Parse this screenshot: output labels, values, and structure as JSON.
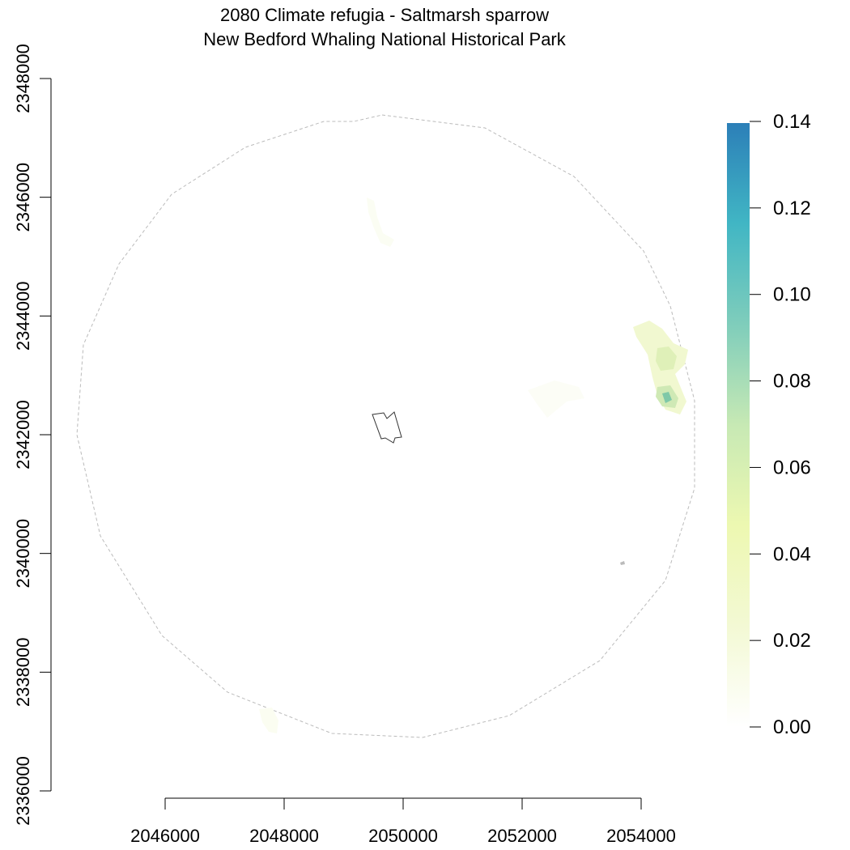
{
  "title": {
    "line1": "2080 Climate refugia - Saltmarsh sparrow",
    "line2": "New Bedford Whaling National Historical Park"
  },
  "map": {
    "x_range": [
      2044000,
      2055000
    ],
    "y_range": [
      2336000,
      2348000
    ],
    "x_ticks": [
      2046000,
      2048000,
      2050000,
      2052000,
      2054000
    ],
    "y_ticks": [
      2336000,
      2338000,
      2340000,
      2342000,
      2344000,
      2346000,
      2348000
    ],
    "x_tick_labels": [
      "2046000",
      "2048000",
      "2050000",
      "2052000",
      "2054000"
    ],
    "y_tick_labels": [
      "2336000",
      "2338000",
      "2340000",
      "2342000",
      "2344000",
      "2346000",
      "2348000"
    ],
    "buffer_boundary_color": "#bbbbbb",
    "park_boundary_color": "#333333"
  },
  "legend": {
    "min": 0,
    "max": 0.14,
    "tick_labels": [
      "0.00",
      "0.02",
      "0.04",
      "0.06",
      "0.08",
      "0.10",
      "0.12",
      "0.14"
    ],
    "color_stops": [
      "#ffffff",
      "#f3f9d4",
      "#edf8b1",
      "#c7e9b4",
      "#7fcdbb",
      "#41b6c4",
      "#2c7fb8"
    ]
  }
}
